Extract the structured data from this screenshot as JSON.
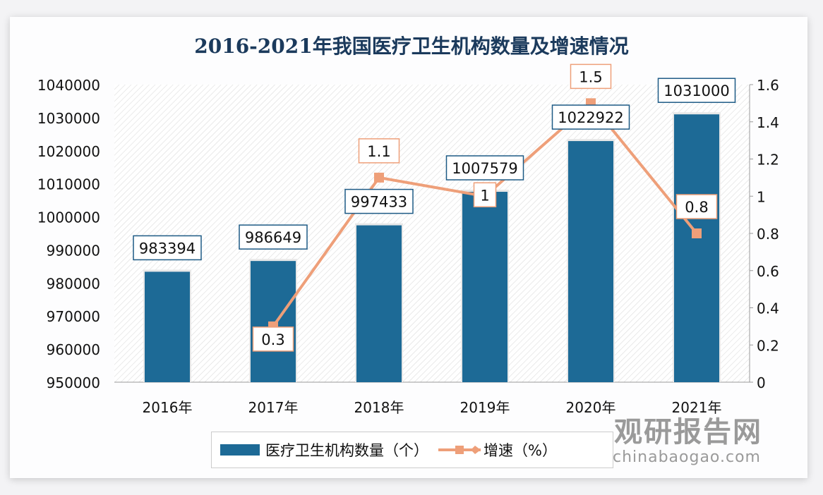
{
  "chart_data": {
    "type": "bar+line",
    "title": "2016-2021年我国医疗卫生机构数量及增速情况",
    "categories": [
      "2016年",
      "2017年",
      "2018年",
      "2019年",
      "2020年",
      "2021年"
    ],
    "series": [
      {
        "name": "医疗卫生机构数量（个）",
        "type": "bar",
        "axis": "left",
        "values": [
          983394,
          986649,
          997433,
          1007579,
          1022922,
          1031000
        ],
        "labels": [
          "983394",
          "986649",
          "997433",
          "1007579",
          "1022922",
          "1031000"
        ]
      },
      {
        "name": "增速（%）",
        "type": "line",
        "axis": "right",
        "values": [
          null,
          0.3,
          1.1,
          1.0,
          1.5,
          0.8
        ],
        "labels": [
          "",
          "0.3",
          "1.1",
          "1",
          "1.5",
          "0.8"
        ]
      }
    ],
    "y_left": {
      "range": [
        950000,
        1040000
      ],
      "ticks": [
        "950000",
        "960000",
        "970000",
        "980000",
        "990000",
        "1000000",
        "1010000",
        "1020000",
        "1030000",
        "1040000"
      ]
    },
    "y_right": {
      "range": [
        0,
        1.6
      ],
      "ticks": [
        "0",
        "0.2",
        "0.4",
        "0.6",
        "0.8",
        "1",
        "1.2",
        "1.4",
        "1.6"
      ]
    },
    "legend": "bottom",
    "grid": false,
    "colors": {
      "bar": "#1d6a96",
      "line": "#ee9f79",
      "title": "#1b3a5c"
    }
  },
  "watermark": {
    "cn": "观研报告网",
    "en": "chinabaogao.com"
  }
}
